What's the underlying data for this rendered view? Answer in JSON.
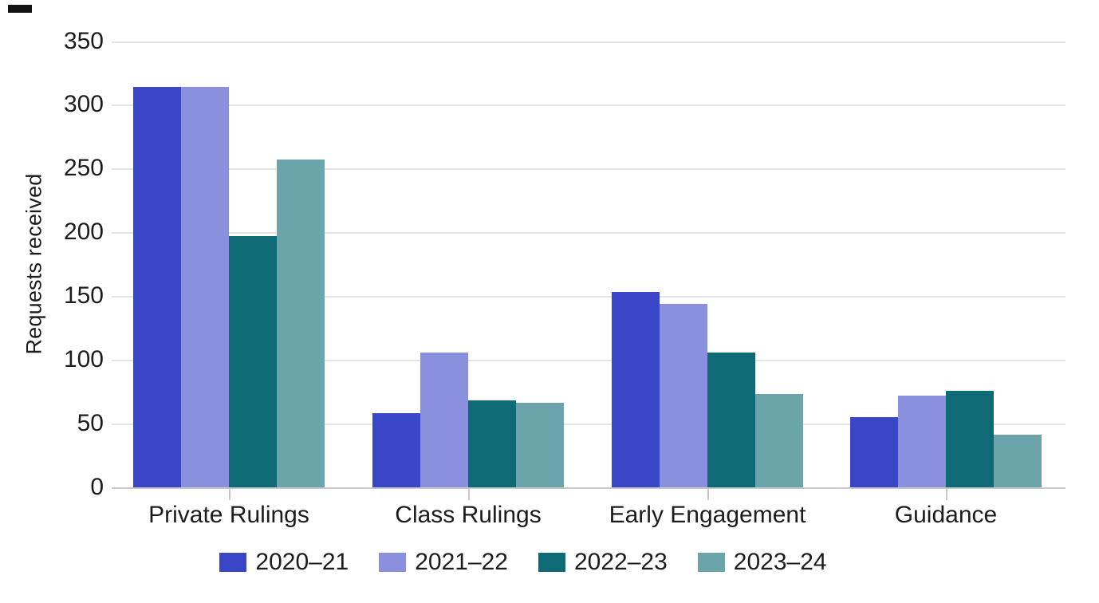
{
  "chart_data": {
    "type": "bar",
    "title": "",
    "xlabel": "",
    "ylabel": "Requests received",
    "categories": [
      "Private Rulings",
      "Class Rulings",
      "Early Engagement",
      "Guidance"
    ],
    "series": [
      {
        "name": "2020–21",
        "color": "#3a46c8",
        "values": [
          314,
          58,
          153,
          55
        ]
      },
      {
        "name": "2021–22",
        "color": "#8a90dd",
        "values": [
          314,
          106,
          144,
          72
        ]
      },
      {
        "name": "2022–23",
        "color": "#0e6a75",
        "values": [
          197,
          68,
          106,
          76
        ]
      },
      {
        "name": "2023–24",
        "color": "#6ba4ab",
        "values": [
          257,
          66,
          73,
          41
        ]
      }
    ],
    "ylim": [
      0,
      350
    ],
    "y_ticks": [
      0,
      50,
      100,
      150,
      200,
      250,
      300,
      350
    ],
    "grid": true,
    "legend_position": "bottom"
  },
  "colors": {
    "background": "#ffffff",
    "text": "#1c1c1c",
    "gridline": "#e3e3e3",
    "axis_line": "#c9c9c9"
  }
}
